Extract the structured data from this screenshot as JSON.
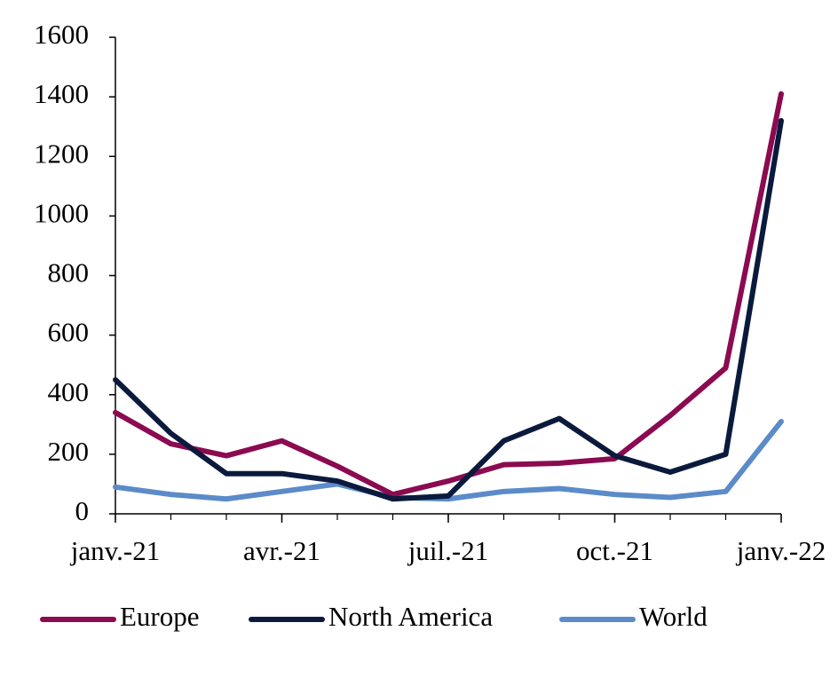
{
  "chart_data": {
    "type": "line",
    "x": [
      "2021-01",
      "2021-02",
      "2021-03",
      "2021-04",
      "2021-05",
      "2021-06",
      "2021-07",
      "2021-08",
      "2021-09",
      "2021-10",
      "2021-11",
      "2021-12",
      "2022-01"
    ],
    "xlim": [
      "2021-01",
      "2022-01"
    ],
    "xticks": [
      {
        "value": "2021-01",
        "label": "janv.-21"
      },
      {
        "value": "2021-04",
        "label": "avr.-21"
      },
      {
        "value": "2021-07",
        "label": "juil.-21"
      },
      {
        "value": "2021-10",
        "label": "oct.-21"
      },
      {
        "value": "2022-01",
        "label": "janv.-22"
      }
    ],
    "ylim": [
      0,
      1600
    ],
    "yticks": [
      0,
      200,
      400,
      600,
      800,
      1000,
      1200,
      1400,
      1600
    ],
    "grid": false,
    "legend": "bottom",
    "series": [
      {
        "name": "Europe",
        "color": "#8b0a50",
        "values": [
          340,
          235,
          195,
          245,
          160,
          65,
          110,
          165,
          170,
          185,
          330,
          490,
          1410
        ]
      },
      {
        "name": "North America",
        "color": "#0b1a3c",
        "values": [
          450,
          270,
          135,
          135,
          110,
          50,
          60,
          245,
          320,
          195,
          140,
          200,
          1320
        ]
      },
      {
        "name": "World",
        "color": "#5b8bc8",
        "values": [
          90,
          65,
          50,
          75,
          100,
          55,
          50,
          75,
          85,
          65,
          55,
          75,
          310
        ]
      }
    ]
  }
}
